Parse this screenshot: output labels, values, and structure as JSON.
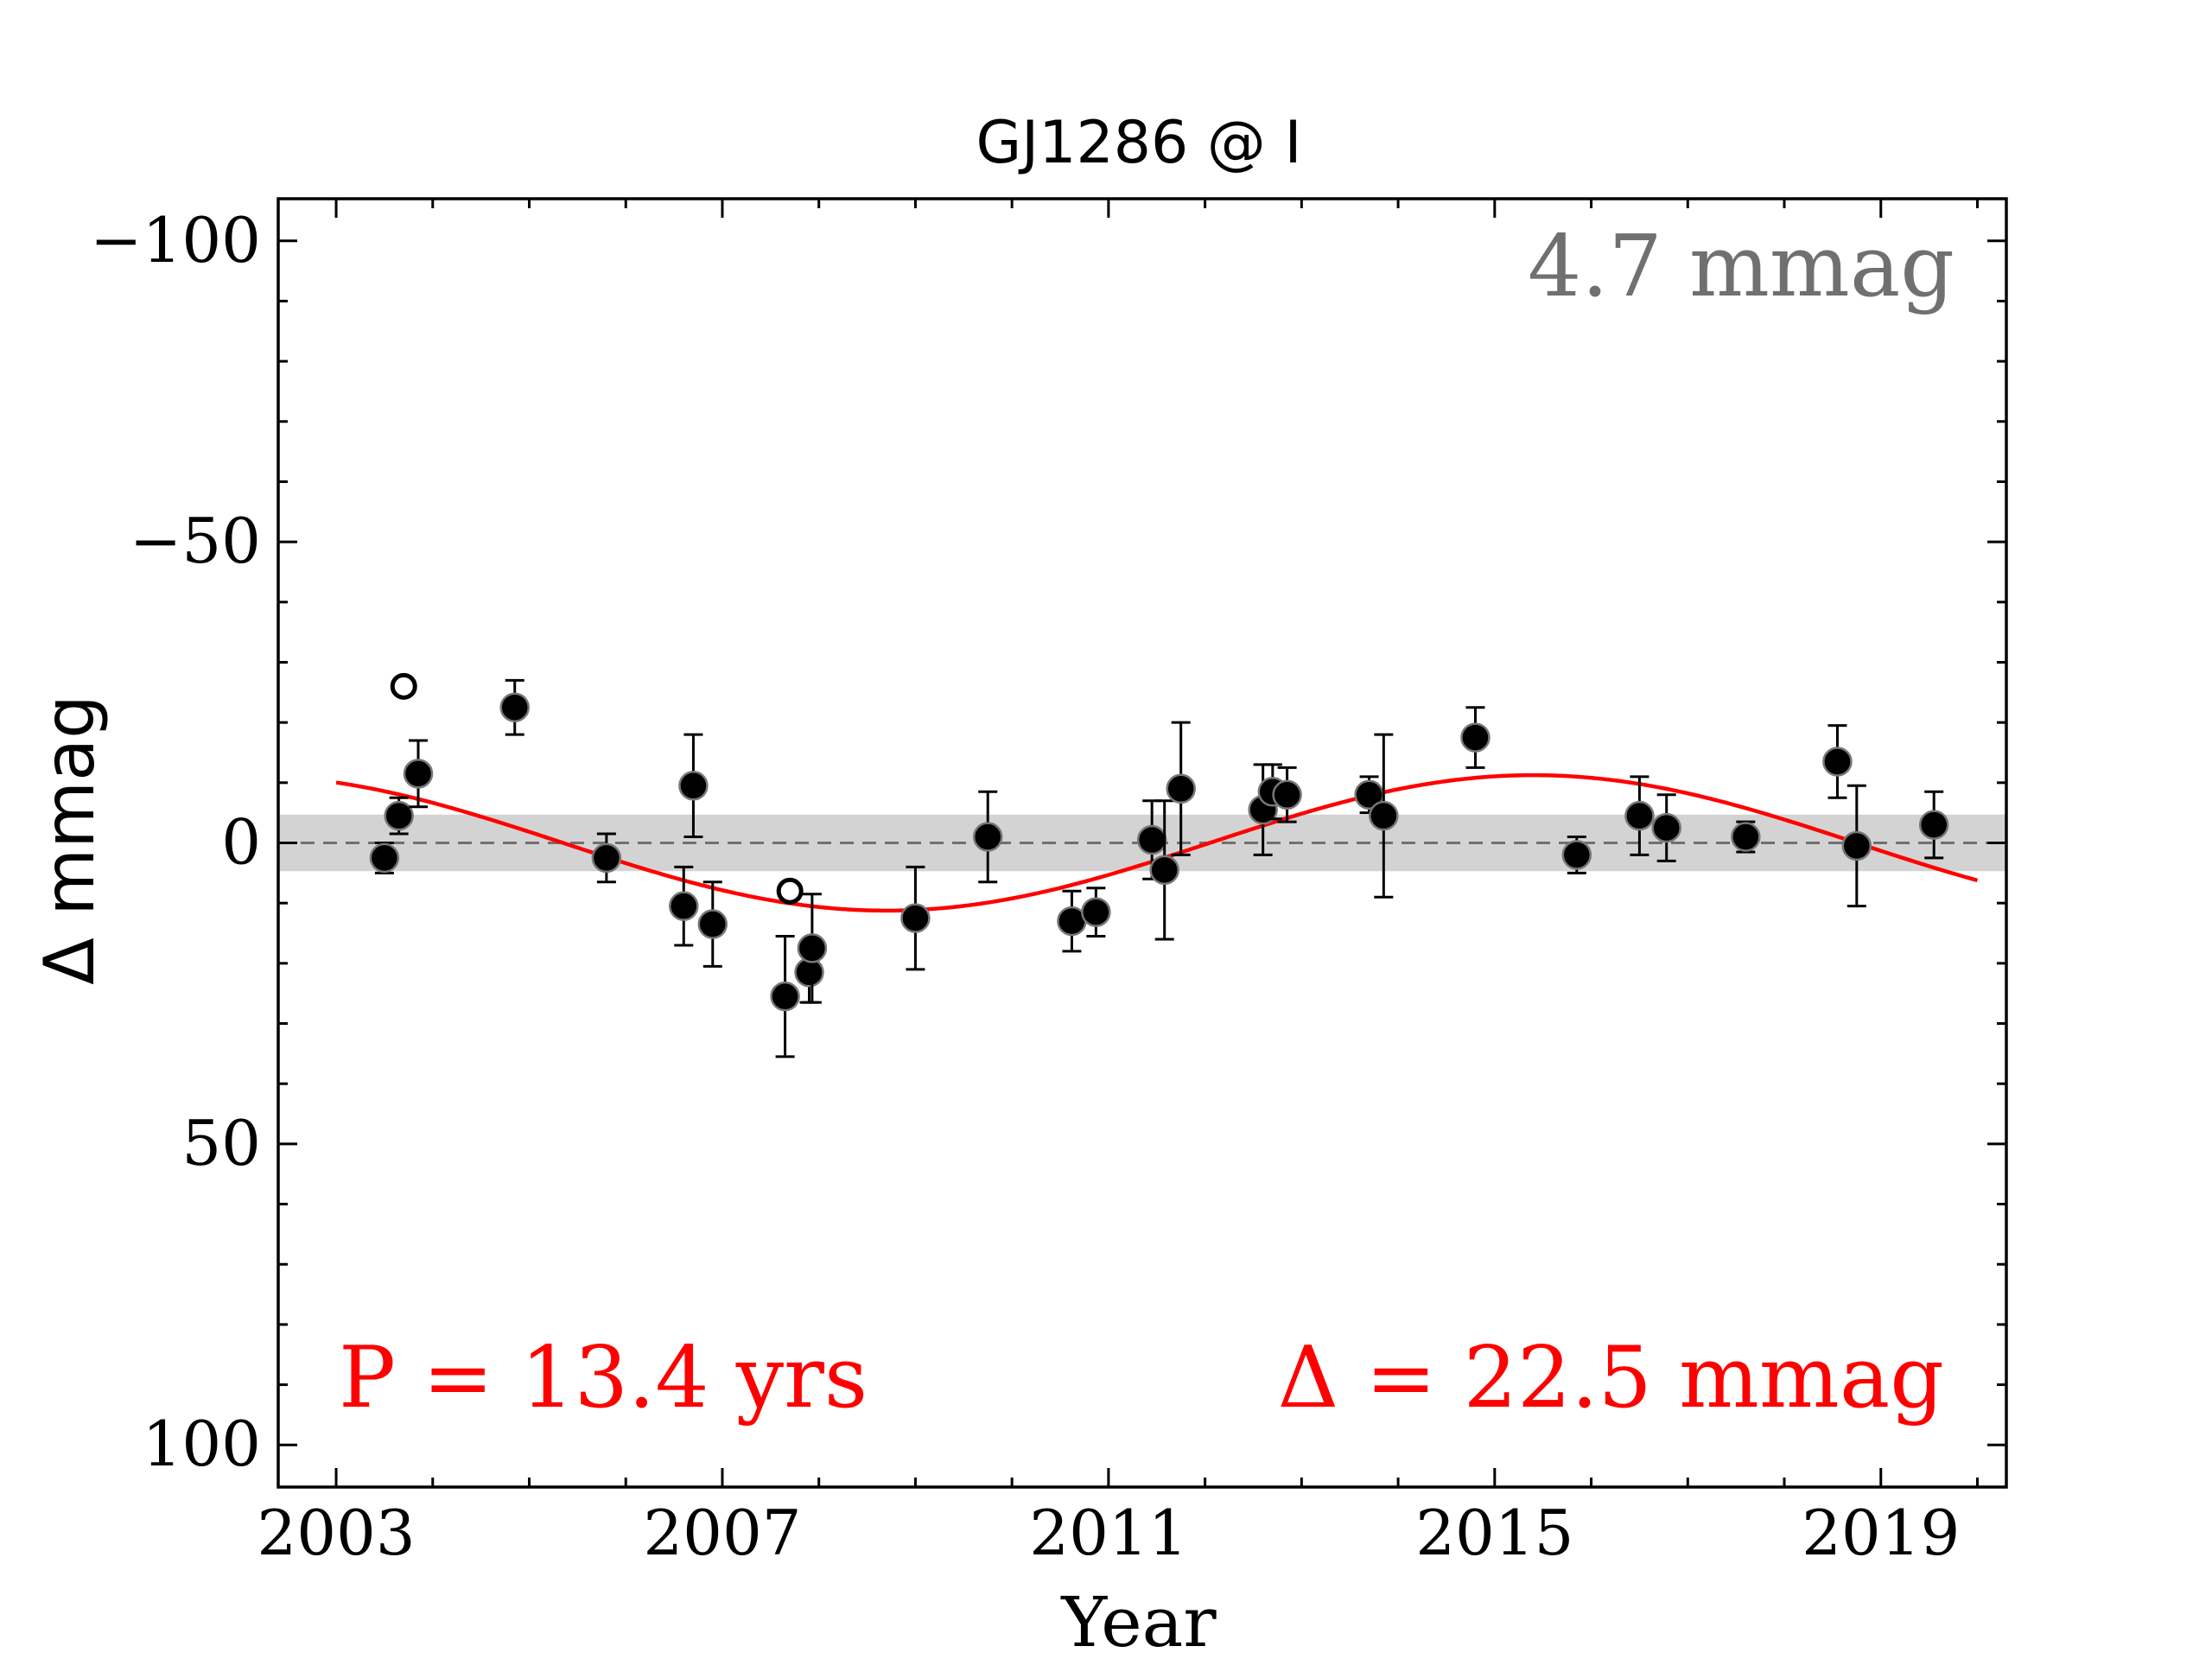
{
  "chart_data": {
    "type": "scatter",
    "title": "GJ1286 @ I",
    "xlabel": "Year",
    "ylabel": "Δ  mmag",
    "xlim": [
      2002.4,
      2020.3
    ],
    "ylim": [
      107,
      -107
    ],
    "y_inverted": true,
    "xticks": [
      2003,
      2007,
      2011,
      2015,
      2019
    ],
    "xtick_labels": [
      "2003",
      "2007",
      "2011",
      "2015",
      "2019"
    ],
    "yticks": [
      -100,
      -50,
      0,
      50,
      100
    ],
    "ytick_labels": [
      "−100",
      "−50",
      "0",
      "50",
      "100"
    ],
    "band": {
      "lower": -4.7,
      "upper": 4.7,
      "color": "#d3d3d3"
    },
    "zero_line": {
      "y": 0,
      "style": "dashed",
      "color": "#707070"
    },
    "series": [
      {
        "marker": "filled-circle",
        "color": "#000000",
        "points": [
          {
            "x": 2003.5,
            "y": 2.5,
            "err": 2.5
          },
          {
            "x": 2003.65,
            "y": -4.5,
            "err": 3.0
          },
          {
            "x": 2003.85,
            "y": -11.5,
            "err": 5.5
          },
          {
            "x": 2004.85,
            "y": -22.5,
            "err": 4.5
          },
          {
            "x": 2005.8,
            "y": 2.5,
            "err": 4.0
          },
          {
            "x": 2006.6,
            "y": 10.5,
            "err": 6.5
          },
          {
            "x": 2006.7,
            "y": -9.5,
            "err": 8.5
          },
          {
            "x": 2006.9,
            "y": 13.5,
            "err": 7.0
          },
          {
            "x": 2007.65,
            "y": 25.5,
            "err": 10.0
          },
          {
            "x": 2007.9,
            "y": 21.5,
            "err": 5.0
          },
          {
            "x": 2007.93,
            "y": 17.5,
            "err": 9.0
          },
          {
            "x": 2009.0,
            "y": 12.5,
            "err": 8.5
          },
          {
            "x": 2009.75,
            "y": -1.0,
            "err": 7.5
          },
          {
            "x": 2010.62,
            "y": 13.0,
            "err": 5.0
          },
          {
            "x": 2010.87,
            "y": 11.5,
            "err": 4.0
          },
          {
            "x": 2011.45,
            "y": -0.5,
            "err": 6.5
          },
          {
            "x": 2011.58,
            "y": 4.5,
            "err": 11.5
          },
          {
            "x": 2011.75,
            "y": -9.0,
            "err": 11.0
          },
          {
            "x": 2012.6,
            "y": -5.5,
            "err": 7.5
          },
          {
            "x": 2012.7,
            "y": -8.5,
            "err": 4.5
          },
          {
            "x": 2012.85,
            "y": -8.0,
            "err": 4.5
          },
          {
            "x": 2013.7,
            "y": -8.0,
            "err": 3.0
          },
          {
            "x": 2013.85,
            "y": -4.5,
            "err": 13.5
          },
          {
            "x": 2014.8,
            "y": -17.5,
            "err": 5.0
          },
          {
            "x": 2015.85,
            "y": 2.0,
            "err": 3.0
          },
          {
            "x": 2016.5,
            "y": -4.5,
            "err": 6.5
          },
          {
            "x": 2016.78,
            "y": -2.5,
            "err": 5.5
          },
          {
            "x": 2017.6,
            "y": -1.0,
            "err": 2.5
          },
          {
            "x": 2018.55,
            "y": -13.5,
            "err": 6.0
          },
          {
            "x": 2018.75,
            "y": 0.5,
            "err": 10.0
          },
          {
            "x": 2019.55,
            "y": -3.0,
            "err": 5.5
          }
        ]
      },
      {
        "marker": "open-circle",
        "color": "#000000",
        "points": [
          {
            "x": 2003.7,
            "y": -26.0
          },
          {
            "x": 2007.7,
            "y": 8.0
          }
        ]
      }
    ],
    "fit": {
      "color": "#ff0000",
      "period": 13.4,
      "amplitude": 11.25,
      "trough_x": 2008.7,
      "x_range": [
        2003.0,
        2020.0
      ]
    },
    "annotations": {
      "scatter": "4.7 mmag",
      "period": "P = 13.4 yrs",
      "amplitude": "Δ = 22.5 mmag"
    },
    "annotation_colors": {
      "scatter": "#707070",
      "period": "#ff0000",
      "amplitude": "#ff0000"
    }
  }
}
